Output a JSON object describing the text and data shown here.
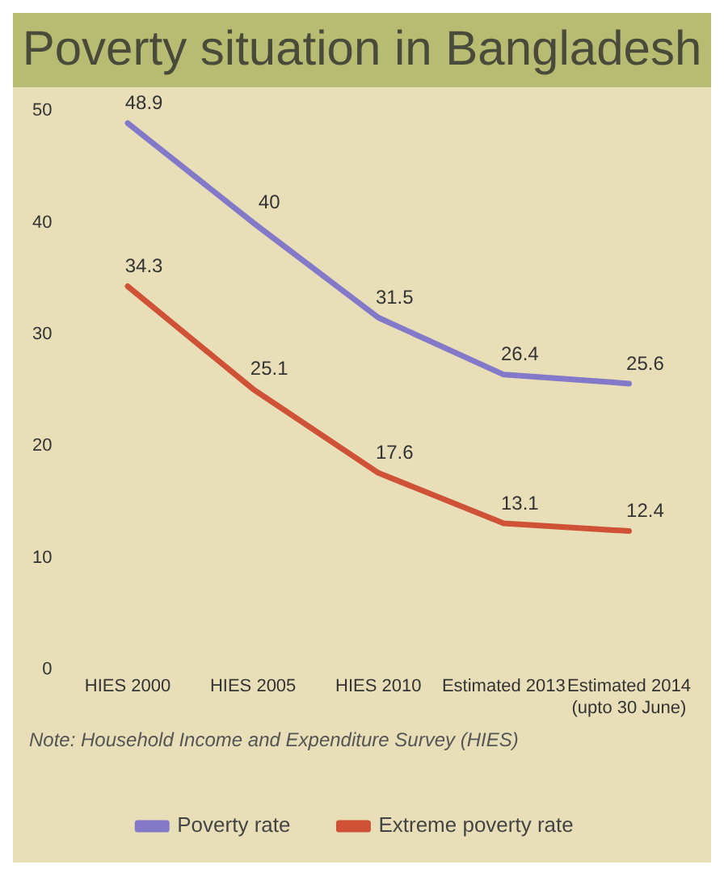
{
  "chart_data": {
    "type": "line",
    "title": "Poverty situation in Bangladesh",
    "categories": [
      "HIES 2000",
      "HIES 2005",
      "HIES 2010",
      "Estimated 2013",
      "Estimated 2014 (upto 30 June)"
    ],
    "series": [
      {
        "name": "Poverty rate",
        "color": "#8479c9",
        "values": [
          48.9,
          40,
          31.5,
          26.4,
          25.6
        ]
      },
      {
        "name": "Extreme poverty rate",
        "color": "#cf5136",
        "values": [
          34.3,
          25.1,
          17.6,
          13.1,
          12.4
        ]
      }
    ],
    "ylim": [
      0,
      50
    ],
    "yticks": [
      0,
      10,
      20,
      30,
      40,
      50
    ],
    "grid": false,
    "legend": "bottom",
    "marker": "none",
    "line_style": "solid",
    "data_labels": true,
    "annotations": [
      "Note: Household Income and Expenditure Survey (HIES)"
    ]
  }
}
